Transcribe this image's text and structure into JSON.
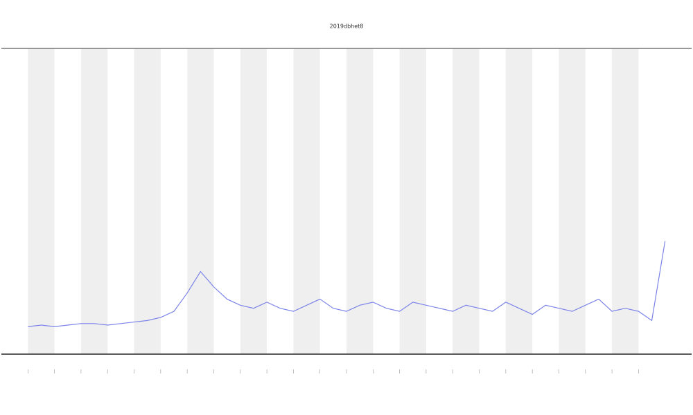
{
  "chart_data": {
    "type": "line",
    "title": "2019dbhet8",
    "x": [
      0,
      0.5,
      1,
      1.5,
      2,
      2.5,
      3,
      3.5,
      4,
      4.5,
      5,
      5.5,
      6,
      6.5,
      7,
      7.5,
      8,
      8.5,
      9,
      9.5,
      10,
      10.5,
      11,
      11.5,
      12,
      12.5,
      13,
      13.5,
      14,
      14.5,
      15,
      15.5,
      16,
      16.5,
      17,
      17.5,
      18,
      18.5,
      19,
      19.5,
      20,
      20.5,
      21,
      21.5,
      22,
      22.5,
      23,
      23.5,
      24
    ],
    "series": [
      {
        "color": "#7b83e8",
        "values": [
          9,
          9.5,
          9,
          9.5,
          10,
          10,
          9.5,
          10,
          10.5,
          11,
          12,
          14,
          20,
          27,
          22,
          18,
          16,
          15,
          17,
          15,
          14,
          16,
          18,
          15,
          14,
          16,
          17,
          15,
          14,
          17,
          16,
          15,
          14,
          16,
          15,
          14,
          17,
          15,
          13,
          16,
          15,
          14,
          16,
          18,
          14,
          15,
          14,
          11,
          37
        ]
      }
    ],
    "xlim": [
      -1,
      25
    ],
    "ylim": [
      0,
      100
    ],
    "xticks": [
      0,
      1,
      2,
      3,
      4,
      5,
      6,
      7,
      8,
      9,
      10,
      11,
      12,
      13,
      14,
      15,
      16,
      17,
      18,
      19,
      20,
      21,
      22,
      23
    ],
    "grid": true
  }
}
